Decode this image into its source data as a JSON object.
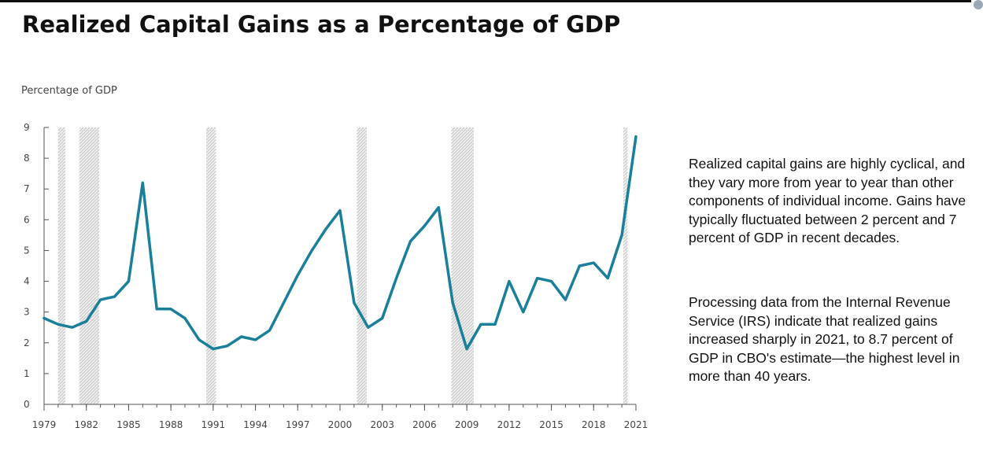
{
  "title": "Realized Capital Gains as a Percentage of GDP",
  "description": {
    "paragraph1": "Realized capital gains are highly cyclical, and they vary more from year to year than other components of individual income. Gains have typically fluctuated between 2 percent and 7 percent of GDP in recent decades.",
    "paragraph2": "Processing data from the Internal Revenue Service (IRS) indicate that realized gains increased sharply in 2021, to 8.7 percent of GDP in CBO's estimate—the highest level in more than 40 years."
  },
  "colors": {
    "line": "#1a7f9a",
    "recession_fill": "#d6d6d6",
    "recession_hatch": "#ffffff",
    "axis": "#555555"
  },
  "chart_data": {
    "type": "line",
    "title": "Realized Capital Gains as a Percentage of GDP",
    "xlabel": "",
    "ylabel": "Percentage of GDP",
    "xlim": [
      1979,
      2021
    ],
    "ylim": [
      0,
      9
    ],
    "yticks": [
      0,
      1,
      2,
      3,
      4,
      5,
      6,
      7,
      8,
      9
    ],
    "xticks": [
      1979,
      1982,
      1985,
      1988,
      1991,
      1994,
      1997,
      2000,
      2003,
      2006,
      2009,
      2012,
      2015,
      2018,
      2021
    ],
    "grid": false,
    "series": [
      {
        "name": "Realized capital gains",
        "x": [
          1979,
          1980,
          1981,
          1982,
          1983,
          1984,
          1985,
          1986,
          1987,
          1988,
          1989,
          1990,
          1991,
          1992,
          1993,
          1994,
          1995,
          1996,
          1997,
          1998,
          1999,
          2000,
          2001,
          2002,
          2003,
          2004,
          2005,
          2006,
          2007,
          2008,
          2009,
          2010,
          2011,
          2012,
          2013,
          2014,
          2015,
          2016,
          2017,
          2018,
          2019,
          2020,
          2021
        ],
        "values": [
          2.8,
          2.6,
          2.5,
          2.7,
          3.4,
          3.5,
          4.0,
          7.2,
          3.1,
          3.1,
          2.8,
          2.1,
          1.8,
          1.9,
          2.2,
          2.1,
          2.4,
          3.3,
          4.2,
          5.0,
          5.7,
          6.3,
          3.3,
          2.5,
          2.8,
          4.1,
          5.3,
          5.8,
          6.4,
          3.3,
          1.8,
          2.6,
          2.6,
          4.0,
          3.0,
          4.1,
          4.0,
          3.4,
          4.5,
          4.6,
          4.1,
          5.5,
          8.7
        ]
      }
    ],
    "recessions": [
      {
        "start": 1980.0,
        "end": 1980.5
      },
      {
        "start": 1981.5,
        "end": 1982.9
      },
      {
        "start": 1990.5,
        "end": 1991.2
      },
      {
        "start": 2001.2,
        "end": 2001.9
      },
      {
        "start": 2007.9,
        "end": 2009.5
      },
      {
        "start": 2020.1,
        "end": 2020.4
      }
    ]
  }
}
